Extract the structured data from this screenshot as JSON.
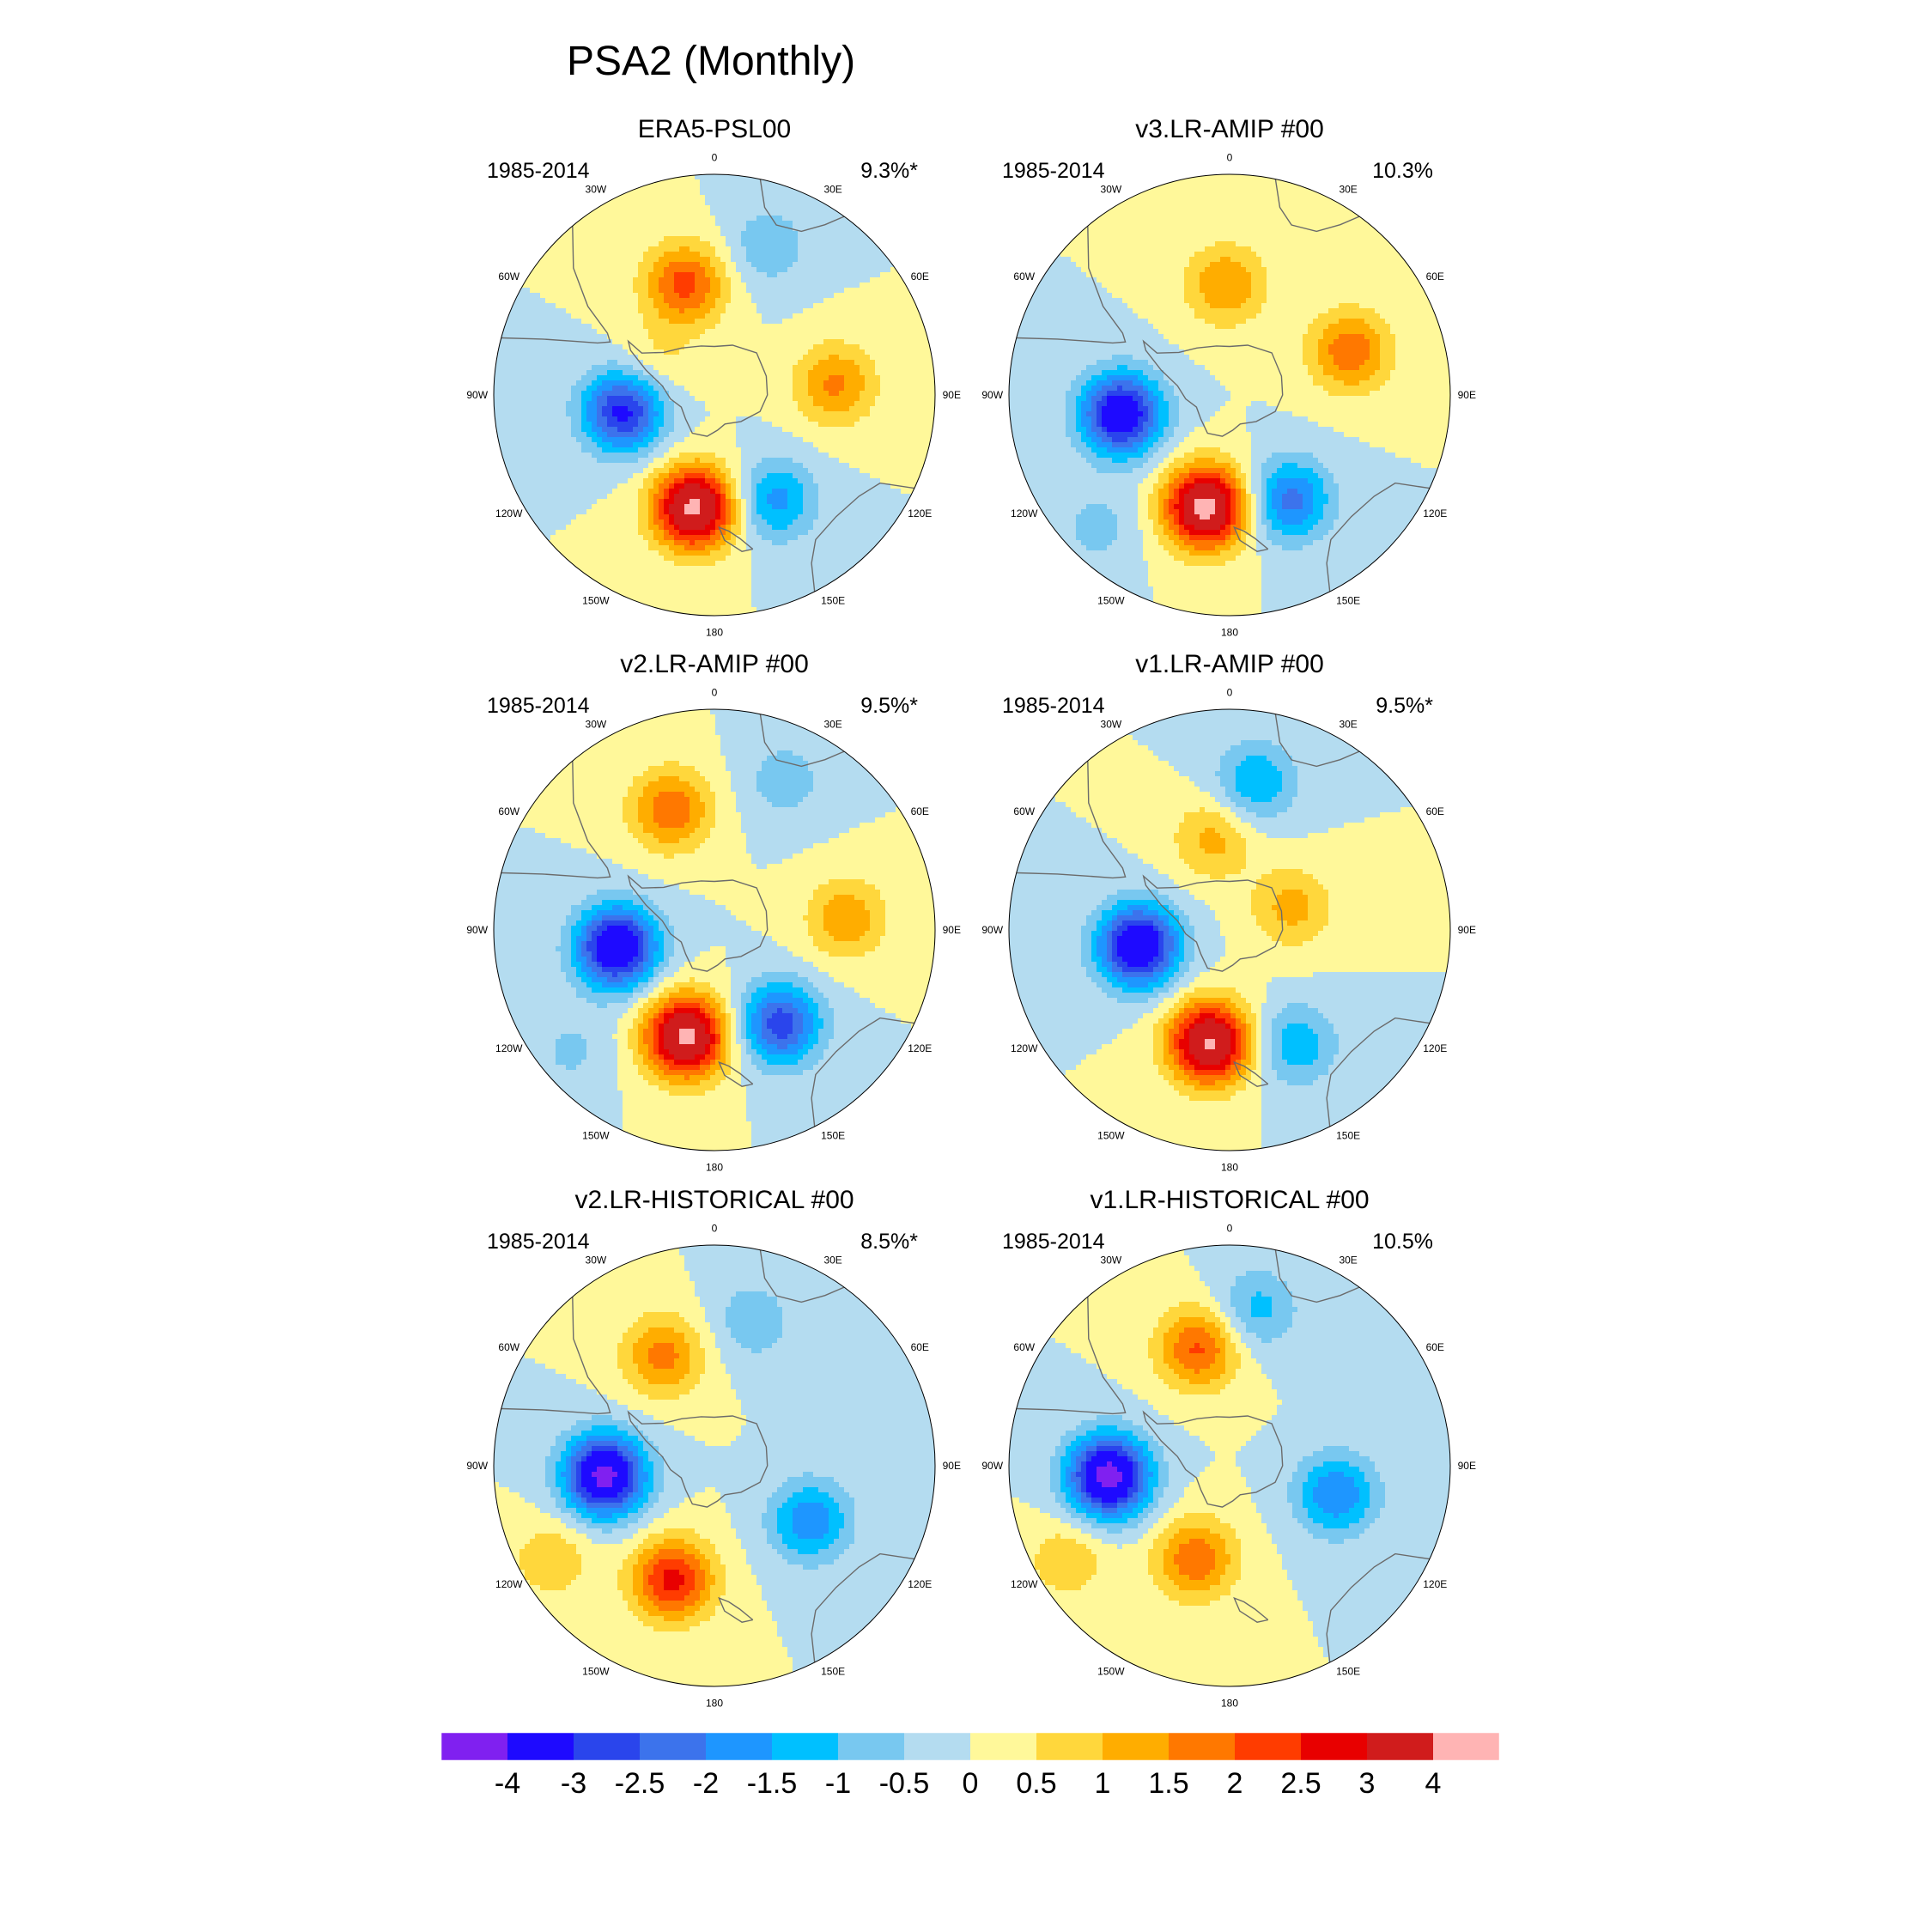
{
  "title": "PSA2 (Monthly)",
  "longitude_labels": [
    "0",
    "30E",
    "60E",
    "90E",
    "120E",
    "150E",
    "180",
    "150W",
    "120W",
    "90W",
    "60W",
    "30W"
  ],
  "chart_data": [
    {
      "type": "heatmap",
      "projection": "south-polar-stereographic",
      "title": "ERA5-PSL00",
      "period": "1985-2014",
      "variance": "9.3%*",
      "anomalies": [
        {
          "name": "positive",
          "lon": -170,
          "r": 0.52,
          "amp": 4.2
        },
        {
          "name": "negative",
          "lon": -100,
          "r": 0.42,
          "amp": -3.2
        },
        {
          "name": "positive",
          "lon": -15,
          "r": 0.52,
          "amp": 2.2
        },
        {
          "name": "positive",
          "lon": 85,
          "r": 0.55,
          "amp": 1.6
        },
        {
          "name": "negative",
          "lon": 150,
          "r": 0.55,
          "amp": -1.7
        },
        {
          "name": "negative",
          "lon": 20,
          "r": 0.72,
          "amp": -0.9
        },
        {
          "name": "positive",
          "lon": -60,
          "r": 0.3,
          "amp": 0.6
        }
      ]
    },
    {
      "type": "heatmap",
      "projection": "south-polar-stereographic",
      "title": "v3.LR-AMIP  #00",
      "period": "1985-2014",
      "variance": "10.3%",
      "anomalies": [
        {
          "name": "positive",
          "lon": -168,
          "r": 0.52,
          "amp": 4.3
        },
        {
          "name": "negative",
          "lon": -100,
          "r": 0.5,
          "amp": -3.8
        },
        {
          "name": "positive",
          "lon": -2,
          "r": 0.5,
          "amp": 1.5
        },
        {
          "name": "positive",
          "lon": 70,
          "r": 0.58,
          "amp": 1.9
        },
        {
          "name": "negative",
          "lon": 150,
          "r": 0.55,
          "amp": -2.2
        },
        {
          "name": "negative",
          "lon": -135,
          "r": 0.85,
          "amp": -0.7
        }
      ]
    },
    {
      "type": "heatmap",
      "projection": "south-polar-stereographic",
      "title": "v2.LR-AMIP  #00",
      "period": "1985-2014",
      "variance": "9.5%*",
      "anomalies": [
        {
          "name": "positive",
          "lon": -165,
          "r": 0.5,
          "amp": 4.2
        },
        {
          "name": "negative",
          "lon": -100,
          "r": 0.45,
          "amp": -4.0
        },
        {
          "name": "positive",
          "lon": -20,
          "r": 0.58,
          "amp": 1.9
        },
        {
          "name": "positive",
          "lon": 85,
          "r": 0.6,
          "amp": 1.4
        },
        {
          "name": "negative",
          "lon": 145,
          "r": 0.52,
          "amp": -2.8
        },
        {
          "name": "negative",
          "lon": 25,
          "r": 0.75,
          "amp": -0.8
        },
        {
          "name": "negative",
          "lon": -130,
          "r": 0.85,
          "amp": -0.6
        }
      ]
    },
    {
      "type": "heatmap",
      "projection": "south-polar-stereographic",
      "title": "v1.LR-AMIP  #00",
      "period": "1985-2014",
      "variance": "9.5%*",
      "anomalies": [
        {
          "name": "positive",
          "lon": -170,
          "r": 0.52,
          "amp": 4.1
        },
        {
          "name": "negative",
          "lon": -100,
          "r": 0.42,
          "amp": -4.0
        },
        {
          "name": "positive",
          "lon": -10,
          "r": 0.42,
          "amp": 1.2
        },
        {
          "name": "positive",
          "lon": 70,
          "r": 0.3,
          "amp": 1.2
        },
        {
          "name": "negative",
          "lon": 10,
          "r": 0.68,
          "amp": -1.5
        },
        {
          "name": "negative",
          "lon": 150,
          "r": 0.6,
          "amp": -1.4
        }
      ]
    },
    {
      "type": "heatmap",
      "projection": "south-polar-stereographic",
      "title": "v2.LR-HISTORICAL  #00",
      "period": "1985-2014",
      "variance": "8.5%*",
      "anomalies": [
        {
          "name": "negative",
          "lon": -95,
          "r": 0.5,
          "amp": -4.3
        },
        {
          "name": "positive",
          "lon": -160,
          "r": 0.55,
          "amp": 2.7
        },
        {
          "name": "positive",
          "lon": -25,
          "r": 0.55,
          "amp": 1.7
        },
        {
          "name": "negative",
          "lon": 120,
          "r": 0.5,
          "amp": -1.9
        },
        {
          "name": "negative",
          "lon": 15,
          "r": 0.68,
          "amp": -0.9
        },
        {
          "name": "positive",
          "lon": -120,
          "r": 0.85,
          "amp": 0.9
        }
      ]
    },
    {
      "type": "heatmap",
      "projection": "south-polar-stereographic",
      "title": "v1.LR-HISTORICAL  #00",
      "period": "1985-2014",
      "variance": "10.5%",
      "anomalies": [
        {
          "name": "negative",
          "lon": -95,
          "r": 0.55,
          "amp": -4.4
        },
        {
          "name": "positive",
          "lon": -160,
          "r": 0.45,
          "amp": 1.9
        },
        {
          "name": "positive",
          "lon": -15,
          "r": 0.55,
          "amp": 2.1
        },
        {
          "name": "negative",
          "lon": 105,
          "r": 0.5,
          "amp": -2.0
        },
        {
          "name": "negative",
          "lon": 10,
          "r": 0.72,
          "amp": -1.2
        },
        {
          "name": "positive",
          "lon": -120,
          "r": 0.85,
          "amp": 0.9
        }
      ]
    }
  ],
  "colorbar": {
    "ticks": [
      "-4",
      "-3",
      "-2.5",
      "-2",
      "-1.5",
      "-1",
      "-0.5",
      "0",
      "0.5",
      "1",
      "1.5",
      "2",
      "2.5",
      "3",
      "4"
    ],
    "levels": [
      -4,
      -3,
      -2.5,
      -2,
      -1.5,
      -1,
      -0.5,
      0,
      0.5,
      1,
      1.5,
      2,
      2.5,
      3,
      4
    ],
    "colors": [
      "#8020f0",
      "#1e0aff",
      "#2a45ec",
      "#3c73ec",
      "#1e96ff",
      "#00c0ff",
      "#78c8f0",
      "#b4dcf0",
      "#fff89a",
      "#ffd73c",
      "#ffad00",
      "#ff7800",
      "#ff3c00",
      "#e80000",
      "#d01c1c",
      "#ffb4b4"
    ]
  },
  "map_colors": {
    "land_outline": "#6b6b6b",
    "frame": "#000000"
  }
}
